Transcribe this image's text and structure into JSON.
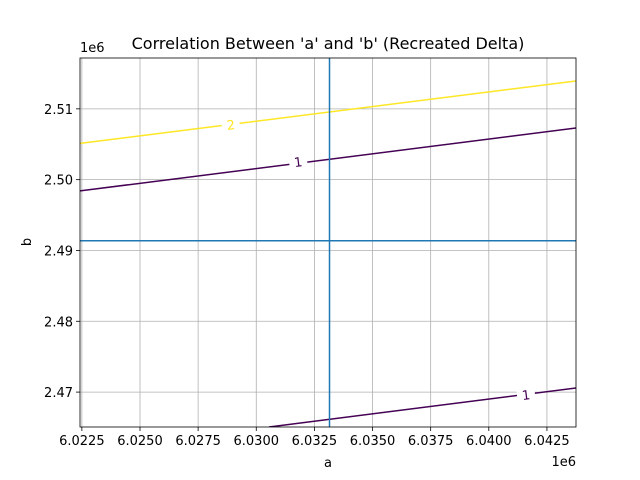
{
  "chart_data": {
    "type": "contour",
    "title": "Correlation Between 'a' and 'b' (Recreated Delta)",
    "xlabel": "a",
    "ylabel": "b",
    "x_offset_text": "1e6",
    "y_offset_text": "1e6",
    "xlim": [
      6.02242,
      6.04375
    ],
    "ylim": [
      2.46507,
      2.51718
    ],
    "x_ticks": [
      6.0225,
      6.025,
      6.0275,
      6.03,
      6.0325,
      6.035,
      6.0375,
      6.04,
      6.0425
    ],
    "x_tick_labels": [
      "6.0225",
      "6.0250",
      "6.0275",
      "6.0300",
      "6.0325",
      "6.0350",
      "6.0375",
      "6.0400",
      "6.0425"
    ],
    "y_ticks": [
      2.47,
      2.48,
      2.49,
      2.5,
      2.51
    ],
    "y_tick_labels": [
      "2.47",
      "2.48",
      "2.49",
      "2.50",
      "2.51"
    ],
    "grid": true,
    "crosshair": {
      "x": 6.03315,
      "y": 2.49138,
      "color": "#1f77b4"
    },
    "contours": [
      {
        "level_label": "2",
        "color": "#fde725",
        "points": [
          [
            6.02242,
            2.50512
          ],
          [
            6.04375,
            2.51394
          ]
        ],
        "label_at": [
          6.0289,
          2.50779
        ]
      },
      {
        "level_label": "1",
        "color": "#440154",
        "points": [
          [
            6.02242,
            2.49841
          ],
          [
            6.04375,
            2.5073
          ]
        ],
        "label_at": [
          6.0318,
          2.50255
        ]
      },
      {
        "level_label": "1",
        "color": "#440154",
        "points": [
          [
            6.03055,
            2.46507
          ],
          [
            6.04375,
            2.47057
          ]
        ],
        "label_at": [
          6.0416,
          2.46964
        ]
      }
    ]
  }
}
